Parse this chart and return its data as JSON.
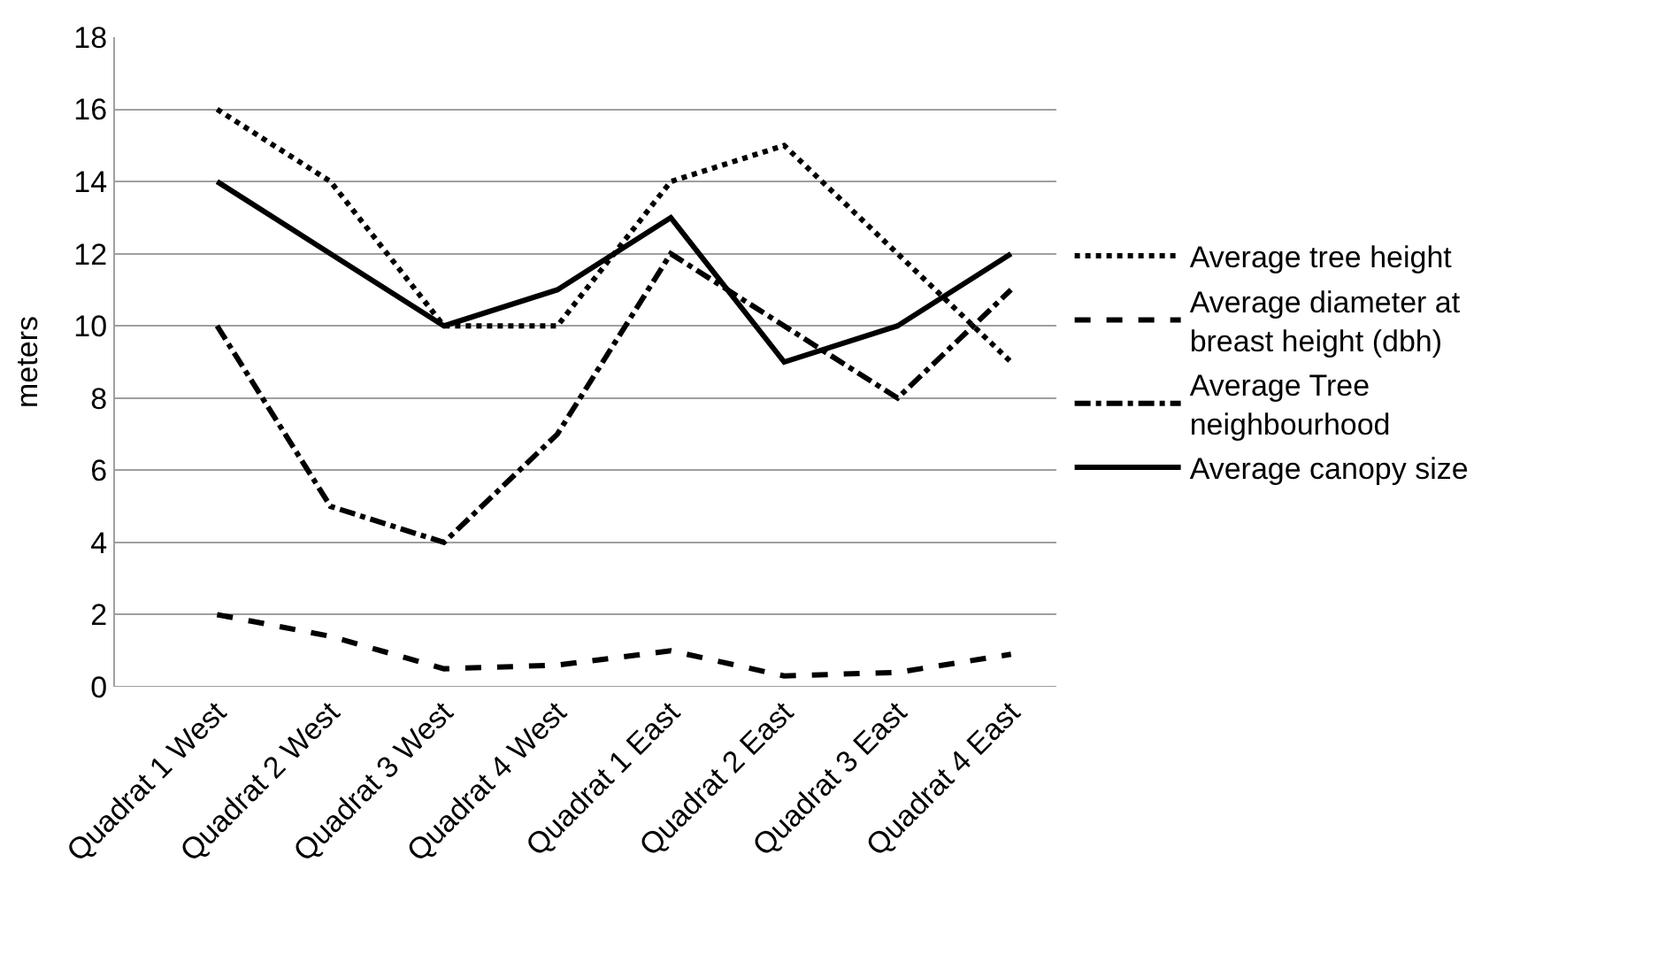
{
  "chart_data": {
    "type": "line",
    "ylabel": "meters",
    "categories": [
      "Quadrat 1 West",
      "Quadrat 2 West",
      "Quadrat 3 West",
      "Quadrat 4 West",
      "Quadrat 1 East",
      "Quadrat 2 East",
      "Quadrat 3 East",
      "Quadrat 4 East"
    ],
    "series": [
      {
        "name": "Average tree height",
        "color": "#000000",
        "line_style": "dotted",
        "values": [
          16,
          14,
          10,
          10,
          14,
          15,
          12,
          9
        ]
      },
      {
        "name": "Average diameter at breast height (dbh)",
        "color": "#000000",
        "line_style": "dashed",
        "values": [
          2,
          1.4,
          0.5,
          0.6,
          1,
          0.3,
          0.4,
          0.9
        ]
      },
      {
        "name": "Average Tree neighbourhood",
        "color": "#000000",
        "line_style": "dashdot",
        "values": [
          10,
          5,
          4,
          7,
          12,
          10,
          8,
          11
        ]
      },
      {
        "name": "Average canopy size",
        "color": "#000000",
        "line_style": "solid",
        "values": [
          14,
          12,
          10,
          11,
          13,
          9,
          10,
          12
        ]
      }
    ],
    "ylim": [
      0,
      18
    ],
    "yticks": [
      0,
      2,
      4,
      6,
      8,
      10,
      12,
      14,
      16,
      18
    ],
    "grid": "y",
    "legend": "right",
    "marker": "none"
  }
}
